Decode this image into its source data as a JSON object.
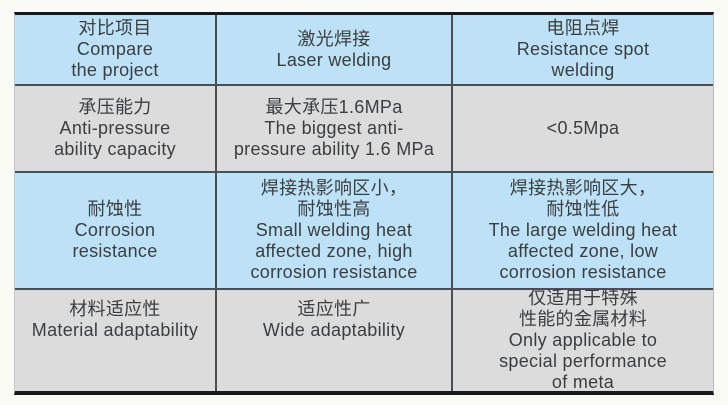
{
  "colors": {
    "header_row_blue": "#bde1f6",
    "row_gray": "#dcdcdc",
    "row_blue": "#bde1f6",
    "grid_line": "#4a4f55",
    "frame_border": "#17191c",
    "text": "#3b3e41",
    "page_background": "#fbfbf5"
  },
  "table": {
    "rows": [
      {
        "kind": "header",
        "cells": [
          {
            "lines": [
              "对比项目",
              "Compare",
              "the project"
            ]
          },
          {
            "lines": [
              "激光焊接",
              "Laser welding"
            ]
          },
          {
            "lines": [
              "电阻点焊",
              "Resistance spot",
              "welding"
            ]
          }
        ]
      },
      {
        "kind": "body",
        "cells": [
          {
            "lines": [
              "承压能力",
              "Anti-pressure",
              "ability capacity"
            ]
          },
          {
            "lines": [
              "最大承压1.6MPa",
              "The biggest anti-",
              "pressure ability 1.6 MPa"
            ]
          },
          {
            "lines": [
              "<0.5Mpa"
            ]
          }
        ]
      },
      {
        "kind": "body",
        "cells": [
          {
            "lines": [
              "耐蚀性",
              "Corrosion",
              "resistance"
            ]
          },
          {
            "lines": [
              "焊接热影响区小，",
              "耐蚀性高",
              "Small welding heat",
              "affected zone, high",
              "corrosion resistance"
            ]
          },
          {
            "lines": [
              "焊接热影响区大，",
              "耐蚀性低",
              "The large welding heat",
              "affected zone, low",
              "corrosion resistance"
            ]
          }
        ]
      },
      {
        "kind": "body",
        "cells": [
          {
            "lines": [
              "材料适应性",
              "Material adaptability"
            ]
          },
          {
            "lines": [
              "适应性广",
              "Wide adaptability"
            ]
          },
          {
            "lines": [
              "仅适用于特殊",
              "性能的金属材料",
              "Only applicable to",
              "special performance",
              "of meta"
            ]
          }
        ]
      }
    ]
  }
}
